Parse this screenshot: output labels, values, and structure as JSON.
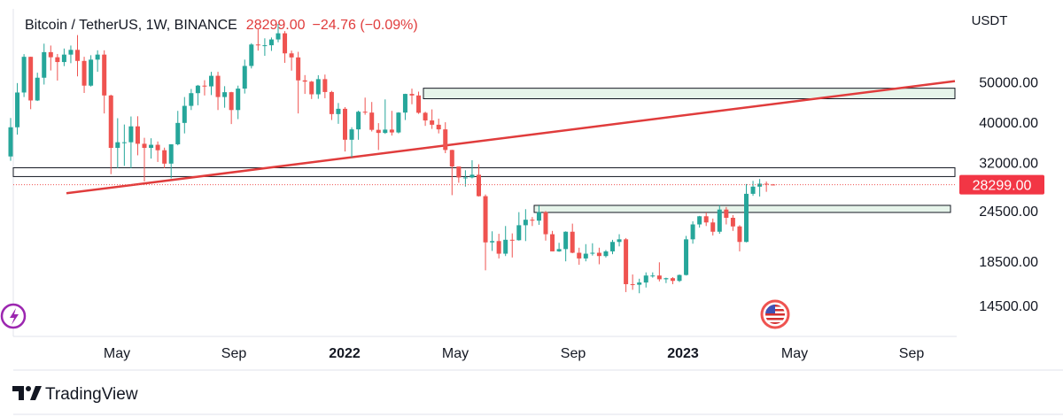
{
  "chart_data": {
    "type": "candlestick",
    "title": "Bitcoin / TetherUS, 1W, BINANCE",
    "last_price_label": "28299.00",
    "change": "−24.76 (−0.09%)",
    "y_unit": "USDT",
    "log_scale": true,
    "up_color": "#26a69a",
    "down_color": "#ef5350",
    "ylim": [
      12200,
      75000
    ],
    "yticks": [
      {
        "value": 50000,
        "label": "50000.00"
      },
      {
        "value": 40000,
        "label": "40000.00"
      },
      {
        "value": 32000,
        "label": "32000.00"
      },
      {
        "value": 24500,
        "label": "24500.00"
      },
      {
        "value": 18500,
        "label": "18500.00"
      },
      {
        "value": 14500,
        "label": "14500.00"
      }
    ],
    "xtick_labels": [
      "May",
      "Sep",
      "2022",
      "May",
      "Sep",
      "2023",
      "May",
      "Sep"
    ],
    "open": [
      33090,
      38900,
      47170,
      57490,
      45135,
      51200,
      59000,
      57350,
      55850,
      58200,
      59750,
      56200,
      49000,
      56600,
      58200,
      46400,
      34700,
      35800,
      35800,
      39100,
      35500,
      34700,
      35300,
      34250,
      31800,
      35400,
      39850,
      43800,
      47000,
      49000,
      48800,
      51750,
      46000,
      47250,
      42800,
      48200,
      54650,
      61550,
      61300,
      61300,
      63300,
      65500,
      58600,
      57300,
      50450,
      50100,
      46700,
      50800,
      47300,
      41850,
      43100,
      36300,
      38450,
      42400,
      42200,
      38350,
      37700,
      38400,
      37800,
      42200,
      46800,
      46400,
      42150,
      40400,
      39450,
      38450,
      34300,
      31300,
      29450,
      29450,
      29900,
      26550,
      20550,
      20700,
      19300,
      20850,
      20800,
      22600,
      23300,
      23180,
      24300,
      21500,
      19550,
      19800,
      21800,
      19400,
      18800,
      19300,
      19400,
      19050,
      19550,
      20600,
      20900,
      16300,
      16250,
      16450,
      17100,
      17100,
      16750,
      16850,
      16600,
      17150,
      20900,
      22700,
      23750,
      22950,
      21800,
      24650,
      23550,
      22450,
      20600,
      26900,
      27990,
      28450,
      28323.76
    ],
    "high": [
      40950,
      49700,
      58350,
      57530,
      52640,
      61840,
      61200,
      58400,
      60200,
      61200,
      64850,
      57500,
      58000,
      59600,
      59600,
      46600,
      40900,
      39500,
      41300,
      41350,
      36700,
      36600,
      35950,
      34750,
      35400,
      42600,
      46000,
      48100,
      49200,
      50500,
      52900,
      52900,
      48850,
      47350,
      49000,
      56600,
      62000,
      67000,
      63700,
      64000,
      69000,
      66300,
      59500,
      59100,
      51950,
      50300,
      51900,
      52100,
      47600,
      44500,
      43500,
      38900,
      42650,
      45850,
      44750,
      39800,
      45400,
      42600,
      42300,
      46850,
      48200,
      47400,
      42400,
      42950,
      40800,
      40000,
      34350,
      31300,
      30650,
      32400,
      31700,
      26800,
      21850,
      21550,
      22500,
      21600,
      24300,
      24700,
      23650,
      25200,
      24450,
      21900,
      20500,
      21850,
      22800,
      19950,
      20350,
      20450,
      19950,
      19700,
      20850,
      21500,
      21050,
      17200,
      16800,
      17400,
      17400,
      18400,
      16900,
      16950,
      17200,
      21300,
      23100,
      23800,
      24250,
      23450,
      25250,
      25000,
      23900,
      22600,
      28400,
      28900,
      29200,
      28800,
      28400
    ],
    "low": [
      32300,
      37350,
      46000,
      43000,
      45000,
      49300,
      53300,
      50400,
      54600,
      55500,
      51600,
      47050,
      48750,
      52900,
      42000,
      30000,
      31000,
      31400,
      31000,
      33300,
      28800,
      32700,
      32100,
      31000,
      29300,
      35200,
      37600,
      42800,
      43950,
      46400,
      46500,
      42800,
      43350,
      39600,
      40700,
      46900,
      53900,
      59500,
      57800,
      59400,
      62300,
      55600,
      53250,
      42000,
      46800,
      45500,
      45550,
      45700,
      40500,
      39650,
      34000,
      32900,
      36300,
      41700,
      38000,
      34300,
      37500,
      37150,
      37600,
      40500,
      44200,
      41900,
      39200,
      38550,
      37600,
      33700,
      26700,
      28600,
      28000,
      29300,
      26500,
      17600,
      19600,
      18800,
      19050,
      18900,
      20750,
      20700,
      22500,
      22650,
      20750,
      19550,
      19500,
      18500,
      19350,
      18150,
      18500,
      19100,
      18200,
      18900,
      19250,
      20100,
      15600,
      15800,
      15500,
      16000,
      16900,
      16550,
      16400,
      16300,
      16500,
      17100,
      20400,
      22300,
      22500,
      21350,
      21550,
      22700,
      21900,
      19550,
      20550,
      26600,
      26500,
      27200,
      28200
    ],
    "close": [
      38900,
      47170,
      57490,
      45135,
      51200,
      59000,
      57350,
      55850,
      58200,
      59750,
      56200,
      49000,
      56600,
      58200,
      46400,
      34700,
      35800,
      35800,
      39100,
      35500,
      34700,
      35300,
      34250,
      31800,
      35400,
      39850,
      43800,
      47000,
      49000,
      48800,
      51750,
      46000,
      47250,
      42800,
      48200,
      54650,
      61550,
      61300,
      61300,
      63300,
      65500,
      58600,
      57300,
      50450,
      50100,
      46700,
      50800,
      47300,
      41850,
      43100,
      36300,
      38450,
      42400,
      42200,
      38350,
      37700,
      38400,
      37800,
      42200,
      46800,
      46400,
      42150,
      40400,
      39450,
      38450,
      34300,
      31300,
      29450,
      29450,
      29900,
      26550,
      20550,
      20700,
      19300,
      20850,
      20800,
      22600,
      23300,
      23180,
      24300,
      21500,
      19550,
      19800,
      21800,
      19400,
      18800,
      19300,
      19400,
      19050,
      19550,
      20600,
      20900,
      16300,
      16250,
      16450,
      17100,
      17100,
      16750,
      16850,
      16600,
      17150,
      20900,
      22700,
      23750,
      22950,
      21800,
      24650,
      23550,
      22450,
      20600,
      26900,
      27990,
      28450,
      28323.76,
      28299
    ],
    "zones": [
      {
        "top": 48300,
        "bottom": 45570,
        "fill": "#e6f4ea"
      },
      {
        "top": 31080,
        "bottom": 29600,
        "fill": "none"
      },
      {
        "top": 25230,
        "bottom": 24260,
        "fill": "#e6f4ea"
      }
    ],
    "trend_line": {
      "start": 26980,
      "end": 50240,
      "color": "#e03c3c"
    },
    "footer": {
      "brand": "TradingView"
    }
  }
}
